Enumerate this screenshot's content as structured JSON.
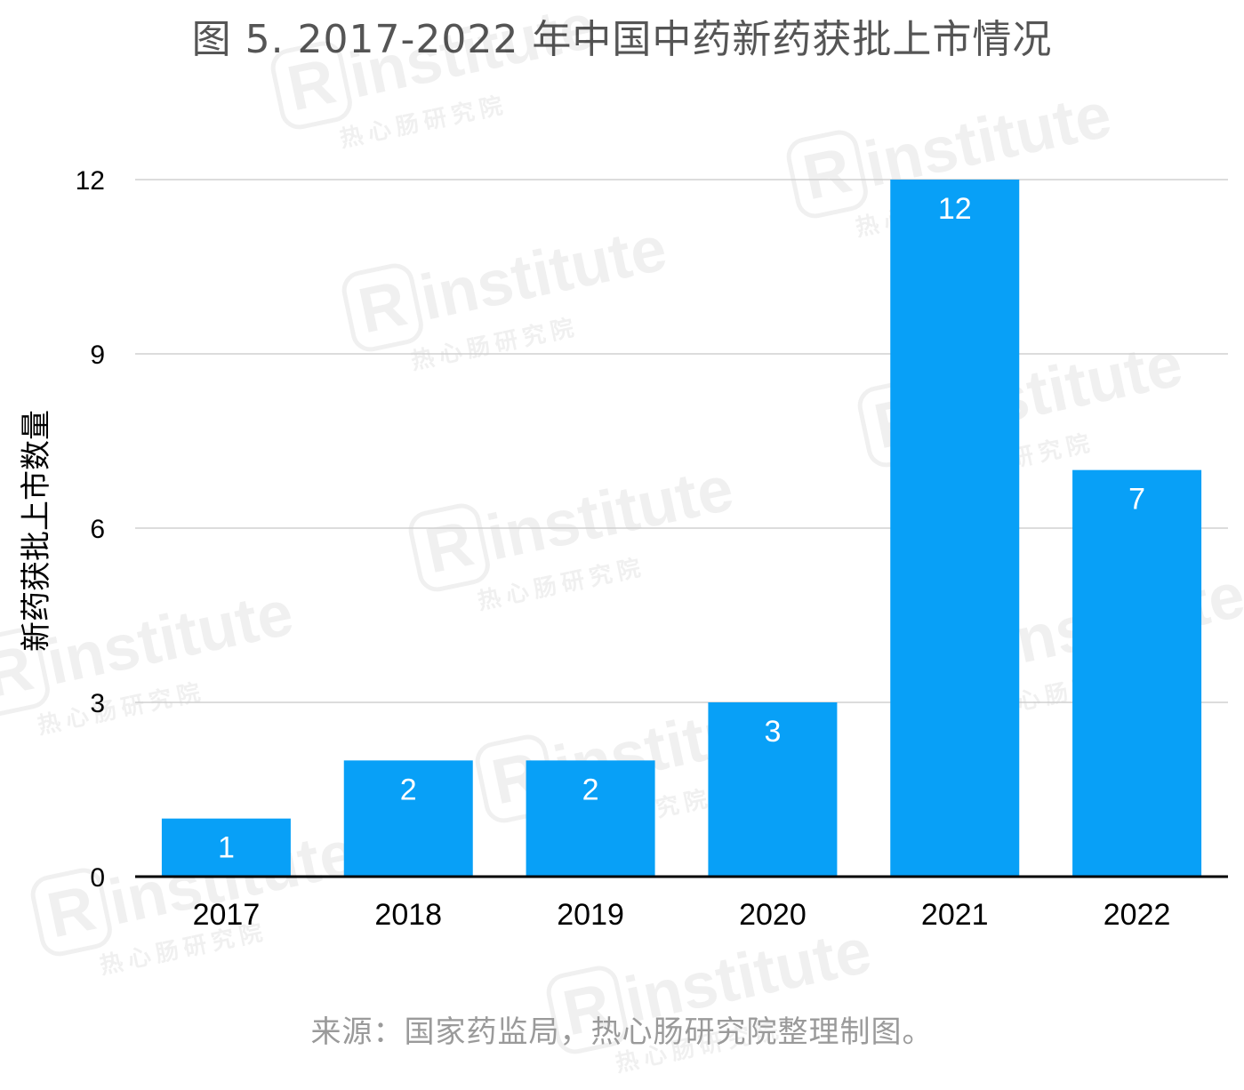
{
  "title": "图 5. 2017-2022 年中国中药新药获批上市情况",
  "source_note": "来源：国家药监局，热心肠研究院整理制图。",
  "watermark": {
    "logo_letter": "R",
    "brand_text": "institute",
    "sub_text": "热心肠研究院"
  },
  "colors": {
    "bar": "#08a0f7",
    "grid": "#d0d0d0",
    "axis": "#000000",
    "label_inside": "#ffffff",
    "tick_text": "#000000"
  },
  "chart_data": {
    "type": "bar",
    "categories": [
      "2017",
      "2018",
      "2019",
      "2020",
      "2021",
      "2022"
    ],
    "values": [
      1,
      2,
      2,
      3,
      12,
      7
    ],
    "data_labels": [
      "1",
      "2",
      "2",
      "3",
      "12",
      "7"
    ],
    "ylabel": "新药获批上市数量",
    "xlabel": "",
    "ylim": [
      0,
      12
    ],
    "yticks": [
      "0",
      "3",
      "6",
      "9",
      "12"
    ],
    "grid": true,
    "legend": "none"
  }
}
